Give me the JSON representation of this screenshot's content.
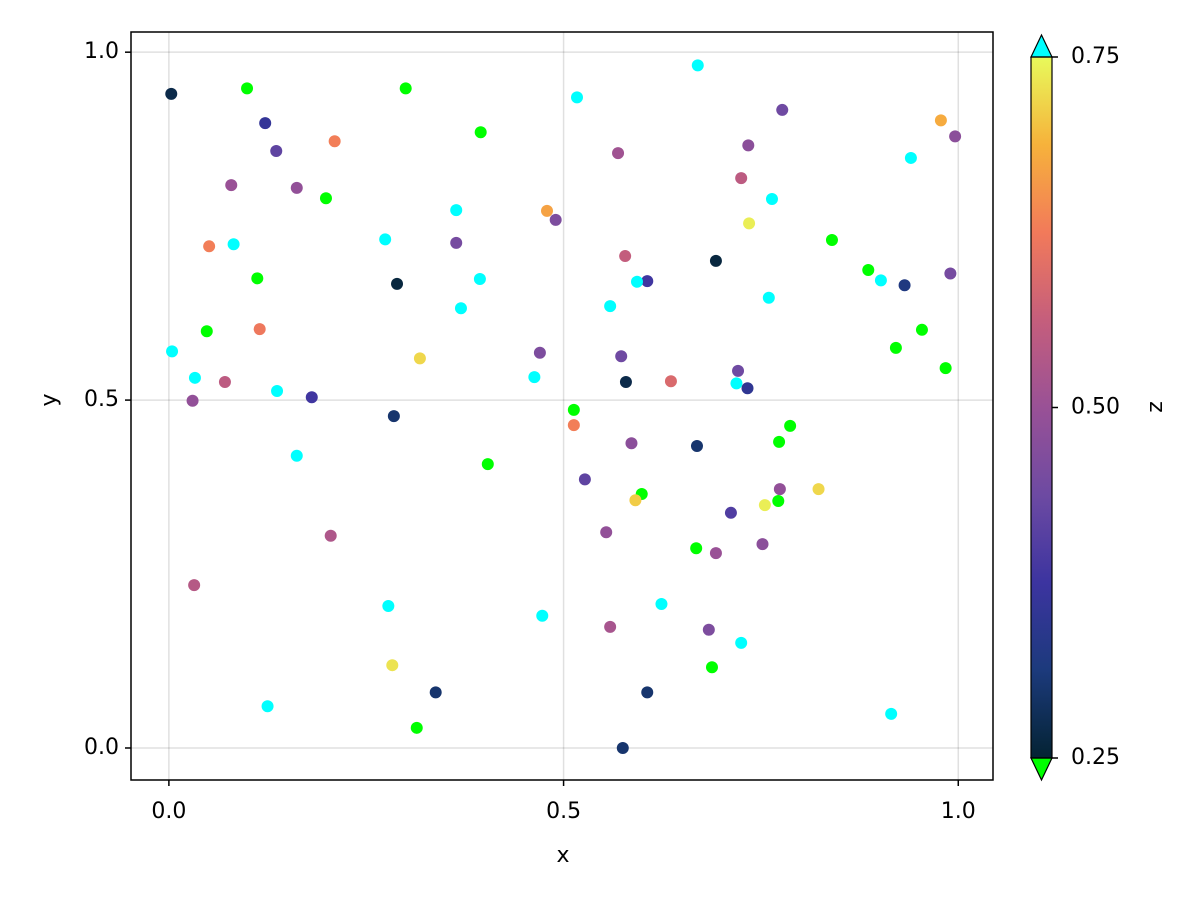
{
  "chart_data": {
    "type": "scatter",
    "xlabel": "x",
    "ylabel": "y",
    "x": [
      0.003,
      0.099,
      0.122,
      0.3,
      0.21,
      0.136,
      0.079,
      0.162,
      0.199,
      0.051,
      0.082,
      0.112,
      0.289,
      0.274,
      0.364,
      0.364,
      0.395,
      0.394,
      0.37,
      0.115,
      0.048,
      0.004,
      0.033,
      0.071,
      0.03,
      0.137,
      0.181,
      0.318,
      0.285,
      0.162,
      0.404,
      0.205,
      0.032,
      0.278,
      0.125,
      0.283,
      0.338,
      0.314,
      0.473,
      0.517,
      0.479,
      0.49,
      0.569,
      0.578,
      0.606,
      0.593,
      0.559,
      0.47,
      0.463,
      0.573,
      0.579,
      0.636,
      0.513,
      0.513,
      0.586,
      0.527,
      0.599,
      0.591,
      0.554,
      0.669,
      0.67,
      0.693,
      0.559,
      0.624,
      0.606,
      0.575,
      0.668,
      0.693,
      0.684,
      0.688,
      0.725,
      0.712,
      0.752,
      0.755,
      0.774,
      0.772,
      0.823,
      0.773,
      0.787,
      0.721,
      0.719,
      0.733,
      0.735,
      0.725,
      0.734,
      0.777,
      0.764,
      0.76,
      0.84,
      0.886,
      0.902,
      0.932,
      0.94,
      0.978,
      0.996,
      0.99,
      0.954,
      0.921,
      0.984,
      0.915
    ],
    "y": [
      0.94,
      0.948,
      0.898,
      0.948,
      0.872,
      0.858,
      0.809,
      0.805,
      0.79,
      0.721,
      0.724,
      0.675,
      0.667,
      0.731,
      0.773,
      0.726,
      0.885,
      0.674,
      0.632,
      0.602,
      0.599,
      0.57,
      0.532,
      0.526,
      0.499,
      0.513,
      0.504,
      0.56,
      0.477,
      0.42,
      0.408,
      0.305,
      0.234,
      0.204,
      0.06,
      0.119,
      0.08,
      0.029,
      0.19,
      0.935,
      0.772,
      0.759,
      0.855,
      0.707,
      0.671,
      0.67,
      0.635,
      0.568,
      0.533,
      0.563,
      0.526,
      0.527,
      0.486,
      0.464,
      0.438,
      0.386,
      0.365,
      0.356,
      0.31,
      0.434,
      0.981,
      0.7,
      0.174,
      0.207,
      0.08,
      0.0,
      0.287,
      0.28,
      0.17,
      0.116,
      0.151,
      0.338,
      0.293,
      0.349,
      0.372,
      0.355,
      0.372,
      0.44,
      0.463,
      0.542,
      0.524,
      0.517,
      0.754,
      0.819,
      0.866,
      0.917,
      0.789,
      0.647,
      0.73,
      0.687,
      0.672,
      0.665,
      0.848,
      0.902,
      0.879,
      0.682,
      0.601,
      0.575,
      0.546,
      0.049
    ],
    "z": [
      0.27,
      0.15,
      0.36,
      0.15,
      0.63,
      0.42,
      0.5,
      0.49,
      0.15,
      0.63,
      0.85,
      0.15,
      0.26,
      0.85,
      0.85,
      0.45,
      0.15,
      0.85,
      0.85,
      0.62,
      0.15,
      0.85,
      0.85,
      0.55,
      0.49,
      0.85,
      0.38,
      0.72,
      0.3,
      0.85,
      0.15,
      0.53,
      0.54,
      0.85,
      0.85,
      0.73,
      0.3,
      0.15,
      0.85,
      0.85,
      0.67,
      0.46,
      0.51,
      0.56,
      0.38,
      0.85,
      0.85,
      0.46,
      0.85,
      0.44,
      0.27,
      0.59,
      0.15,
      0.63,
      0.48,
      0.42,
      0.15,
      0.71,
      0.49,
      0.3,
      0.85,
      0.26,
      0.52,
      0.85,
      0.3,
      0.3,
      0.15,
      0.5,
      0.46,
      0.15,
      0.85,
      0.4,
      0.48,
      0.74,
      0.49,
      0.15,
      0.72,
      0.15,
      0.15,
      0.44,
      0.85,
      0.35,
      0.74,
      0.55,
      0.48,
      0.44,
      0.85,
      0.85,
      0.15,
      0.15,
      0.85,
      0.32,
      0.85,
      0.68,
      0.48,
      0.45,
      0.15,
      0.15,
      0.15,
      0.85
    ],
    "xlim": [
      -0.048,
      1.044
    ],
    "ylim": [
      -0.046,
      1.029
    ],
    "xticks": [
      {
        "value": 0,
        "label": "0.0"
      },
      0.5,
      {
        "value": 1,
        "label": "1.0"
      }
    ],
    "yticks": [
      {
        "value": 0,
        "label": "0.0"
      },
      0.5,
      {
        "value": 1,
        "label": "1.0"
      }
    ],
    "grid": true,
    "colorbar": {
      "label": "z",
      "lim": [
        0.25,
        0.75
      ],
      "ticks": [
        0.25,
        {
          "value": 0.5,
          "label": "0.50"
        },
        0.75
      ],
      "colormap": [
        "#042333",
        "#1c3a7c",
        "#3c34a0",
        "#6d4aa2",
        "#995196",
        "#c55e7c",
        "#f27a5a",
        "#f6b23b",
        "#e8fa5b"
      ],
      "lowclip": "#00ff00",
      "highclip": "#00ffff"
    }
  }
}
